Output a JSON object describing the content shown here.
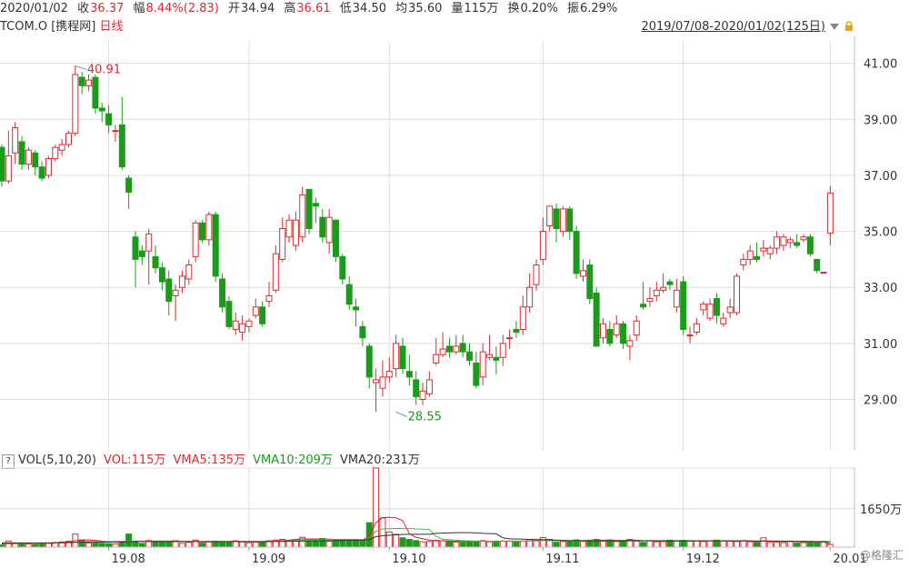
{
  "quote": {
    "date": "2020/01/02",
    "close_label": "收",
    "close": "36.37",
    "change_label": "幅",
    "change": "8.44%(2.83)",
    "open_label": "开",
    "open": "34.94",
    "high_label": "高",
    "high": "36.61",
    "low_label": "低",
    "low": "34.50",
    "avg_label": "均",
    "avg": "35.60",
    "volume_label": "量",
    "volume": "115万",
    "turnover_label": "换",
    "turnover": "0.20%",
    "amplitude_label": "振",
    "amplitude": "6.29%"
  },
  "title": {
    "ticker": "TCOM.O",
    "name": "[携程网]",
    "period": "日线",
    "range": "2019/07/08-2020/01/02(125日)"
  },
  "volume_legend": {
    "help": "?",
    "indicator": "VOL(5,10,20)",
    "vol": "VOL:115万",
    "vma5": "VMA5:135万",
    "vma10": "VMA10:209万",
    "vma20": "VMA20:231万"
  },
  "watermark": "@格隆汇",
  "colors": {
    "up": "#e0282e",
    "down": "#1a9c1a",
    "vma5": "#d0212e",
    "vma10": "#3cbf4c",
    "vma20": "#333333",
    "grid": "#dcdcdc"
  },
  "chart_data": [
    {
      "type": "candlestick",
      "title": "",
      "ylim": [
        27.2,
        41.8
      ],
      "y_ticks": [
        "41.00",
        "39.00",
        "37.00",
        "35.00",
        "33.00",
        "31.00",
        "29.00"
      ],
      "y_tick_values": [
        41,
        39,
        37,
        35,
        33,
        31,
        29
      ],
      "x_ticks": [
        "19.08",
        "19.09",
        "19.10",
        "19.11",
        "19.12",
        "20.01"
      ],
      "x_tick_index": [
        16,
        37,
        58,
        81,
        102,
        124
      ],
      "annotations": [
        {
          "label": "40.91",
          "index": 11,
          "value": 40.91,
          "kind": "high"
        },
        {
          "label": "28.55",
          "index": 59,
          "value": 28.55,
          "kind": "low"
        }
      ],
      "candles": [
        [
          38.0,
          36.8,
          38.1,
          36.6
        ],
        [
          36.8,
          37.7,
          38.6,
          36.7
        ],
        [
          37.8,
          38.7,
          38.9,
          37.4
        ],
        [
          38.2,
          37.4,
          38.4,
          37.2
        ],
        [
          37.4,
          37.9,
          38.0,
          37.2
        ],
        [
          37.8,
          37.3,
          37.9,
          37.0
        ],
        [
          37.3,
          36.9,
          37.5,
          36.8
        ],
        [
          37.0,
          37.6,
          37.7,
          36.9
        ],
        [
          37.6,
          38.0,
          38.1,
          37.5
        ],
        [
          37.9,
          38.1,
          38.3,
          37.7
        ],
        [
          38.1,
          38.5,
          38.6,
          38.0
        ],
        [
          38.5,
          40.6,
          40.91,
          38.4
        ],
        [
          40.5,
          40.2,
          40.7,
          39.9
        ],
        [
          40.2,
          40.4,
          40.6,
          40.0
        ],
        [
          40.5,
          39.4,
          40.6,
          39.2
        ],
        [
          39.4,
          39.3,
          39.6,
          38.9
        ],
        [
          39.2,
          38.8,
          39.5,
          38.5
        ],
        [
          38.6,
          38.6,
          38.8,
          38.2
        ],
        [
          38.8,
          37.3,
          39.8,
          37.2
        ],
        [
          36.9,
          36.4,
          37.0,
          35.8
        ],
        [
          34.8,
          34.0,
          35.0,
          33.0
        ],
        [
          34.3,
          34.1,
          34.5,
          33.8
        ],
        [
          34.3,
          34.9,
          35.1,
          33.1
        ],
        [
          34.1,
          33.7,
          34.5,
          33.5
        ],
        [
          33.7,
          33.2,
          33.9,
          32.9
        ],
        [
          33.3,
          32.5,
          33.6,
          32.0
        ],
        [
          32.7,
          32.9,
          33.1,
          31.8
        ],
        [
          33.0,
          33.4,
          33.6,
          32.8
        ],
        [
          33.3,
          33.8,
          34.0,
          33.1
        ],
        [
          34.1,
          35.3,
          35.4,
          33.9
        ],
        [
          35.3,
          34.7,
          35.4,
          34.6
        ],
        [
          34.7,
          35.6,
          35.7,
          34.5
        ],
        [
          35.6,
          33.4,
          35.7,
          33.2
        ],
        [
          33.3,
          32.3,
          33.5,
          32.1
        ],
        [
          32.5,
          31.6,
          32.7,
          31.5
        ],
        [
          31.5,
          31.8,
          32.1,
          31.3
        ],
        [
          31.4,
          31.7,
          32.0,
          31.1
        ],
        [
          31.6,
          31.8,
          31.9,
          31.4
        ],
        [
          32.0,
          32.3,
          32.6,
          31.9
        ],
        [
          32.3,
          31.7,
          32.5,
          31.6
        ],
        [
          32.5,
          32.7,
          33.2,
          32.3
        ],
        [
          32.9,
          34.2,
          34.5,
          32.8
        ],
        [
          34.0,
          35.1,
          35.5,
          33.9
        ],
        [
          34.8,
          35.4,
          35.6,
          34.6
        ],
        [
          34.5,
          35.4,
          35.7,
          34.3
        ],
        [
          34.8,
          36.3,
          36.6,
          34.6
        ],
        [
          36.5,
          35.1,
          36.5,
          34.9
        ],
        [
          36.0,
          35.9,
          36.2,
          35.3
        ],
        [
          35.5,
          34.8,
          35.8,
          34.6
        ],
        [
          34.6,
          35.5,
          35.8,
          34.2
        ],
        [
          35.4,
          34.1,
          35.4,
          33.9
        ],
        [
          34.1,
          33.3,
          34.2,
          33.1
        ],
        [
          33.1,
          32.4,
          33.4,
          32.2
        ],
        [
          32.3,
          32.2,
          32.6,
          31.6
        ],
        [
          31.6,
          31.2,
          31.8,
          30.9
        ],
        [
          30.9,
          29.8,
          31.0,
          29.4
        ],
        [
          29.6,
          29.7,
          30.1,
          28.55
        ],
        [
          29.4,
          29.8,
          30.4,
          29.1
        ],
        [
          29.8,
          30.0,
          30.5,
          29.6
        ],
        [
          30.1,
          31.0,
          31.3,
          29.8
        ],
        [
          30.9,
          30.1,
          31.2,
          29.9
        ],
        [
          30.0,
          29.8,
          30.6,
          29.5
        ],
        [
          29.7,
          29.1,
          30.0,
          28.8
        ],
        [
          29.0,
          29.3,
          29.6,
          28.8
        ],
        [
          29.2,
          29.7,
          30.0,
          29.1
        ],
        [
          30.3,
          30.6,
          31.2,
          30.2
        ],
        [
          30.6,
          30.8,
          31.4,
          30.5
        ],
        [
          30.9,
          30.7,
          31.2,
          30.5
        ],
        [
          30.7,
          30.9,
          31.3,
          30.6
        ],
        [
          31.0,
          30.7,
          31.3,
          30.5
        ],
        [
          30.7,
          30.4,
          31.0,
          30.2
        ],
        [
          30.3,
          29.5,
          30.7,
          29.4
        ],
        [
          29.8,
          30.7,
          31.0,
          29.5
        ],
        [
          30.5,
          30.6,
          31.3,
          30.4
        ],
        [
          30.5,
          30.4,
          30.9,
          29.9
        ],
        [
          30.5,
          31.0,
          31.3,
          30.2
        ],
        [
          31.2,
          31.2,
          31.5,
          30.8
        ],
        [
          31.5,
          31.4,
          31.8,
          31.2
        ],
        [
          31.5,
          32.3,
          32.7,
          31.3
        ],
        [
          32.3,
          33.0,
          33.5,
          32.1
        ],
        [
          33.1,
          33.8,
          34.0,
          32.9
        ],
        [
          34.0,
          35.0,
          35.5,
          33.8
        ],
        [
          35.2,
          35.9,
          35.9,
          35.0
        ],
        [
          35.8,
          35.1,
          36.0,
          34.6
        ],
        [
          35.0,
          35.8,
          35.9,
          34.8
        ],
        [
          35.8,
          35.0,
          35.9,
          34.7
        ],
        [
          35.0,
          33.5,
          35.2,
          33.3
        ],
        [
          33.4,
          33.6,
          34.0,
          33.2
        ],
        [
          33.8,
          32.6,
          34.0,
          32.4
        ],
        [
          32.8,
          30.9,
          33.0,
          30.9
        ],
        [
          31.2,
          31.7,
          31.9,
          31.0
        ],
        [
          31.5,
          31.0,
          31.8,
          30.9
        ],
        [
          31.3,
          31.7,
          32.0,
          31.2
        ],
        [
          31.7,
          31.0,
          31.8,
          30.8
        ],
        [
          30.9,
          31.1,
          31.3,
          30.4
        ],
        [
          31.3,
          31.8,
          32.0,
          31.1
        ],
        [
          32.4,
          32.3,
          33.2,
          32.2
        ],
        [
          32.5,
          32.6,
          33.0,
          32.3
        ],
        [
          32.7,
          32.9,
          33.2,
          32.5
        ],
        [
          32.9,
          33.0,
          33.5,
          32.8
        ],
        [
          33.2,
          33.1,
          33.3,
          32.9
        ],
        [
          32.3,
          32.9,
          33.3,
          32.1
        ],
        [
          33.2,
          31.5,
          33.4,
          31.3
        ],
        [
          31.3,
          31.3,
          31.6,
          31.0
        ],
        [
          31.4,
          31.7,
          31.9,
          31.3
        ],
        [
          32.2,
          32.4,
          32.5,
          32.0
        ],
        [
          31.9,
          32.4,
          32.6,
          31.8
        ],
        [
          32.6,
          32.0,
          32.8,
          31.7
        ],
        [
          31.7,
          31.9,
          32.1,
          31.6
        ],
        [
          32.1,
          32.3,
          32.6,
          31.9
        ],
        [
          32.1,
          33.4,
          33.5,
          32.0
        ],
        [
          33.8,
          34.0,
          34.2,
          33.6
        ],
        [
          34.0,
          34.3,
          34.5,
          33.8
        ],
        [
          34.1,
          34.0,
          34.6,
          33.9
        ],
        [
          34.3,
          34.4,
          34.7,
          34.1
        ],
        [
          34.2,
          34.4,
          34.5,
          34.0
        ],
        [
          34.4,
          34.8,
          35.0,
          34.2
        ],
        [
          34.5,
          34.8,
          34.9,
          34.3
        ],
        [
          34.6,
          34.7,
          34.8,
          34.4
        ],
        [
          34.6,
          34.5,
          34.9,
          34.4
        ],
        [
          34.7,
          34.8,
          34.9,
          34.6
        ],
        [
          34.8,
          34.2,
          34.9,
          34.1
        ],
        [
          34.0,
          33.6,
          34.0,
          33.5
        ],
        [
          33.54,
          33.54,
          33.54,
          33.54
        ],
        [
          34.94,
          36.37,
          36.61,
          34.5
        ]
      ]
    },
    {
      "type": "bar",
      "title": "",
      "ylabel": "",
      "y_ticks": [
        "1650万"
      ],
      "y_tick_values": [
        1650
      ],
      "ylim": [
        0,
        3400
      ],
      "values": [
        90,
        260,
        150,
        140,
        130,
        120,
        130,
        160,
        190,
        220,
        250,
        560,
        310,
        180,
        170,
        160,
        150,
        140,
        170,
        560,
        250,
        160,
        280,
        220,
        250,
        210,
        270,
        160,
        200,
        300,
        170,
        220,
        250,
        230,
        200,
        270,
        220,
        190,
        210,
        230,
        270,
        300,
        330,
        290,
        320,
        420,
        250,
        260,
        370,
        250,
        300,
        330,
        310,
        330,
        280,
        1050,
        3400,
        1250,
        650,
        550,
        400,
        330,
        280,
        230,
        240,
        290,
        270,
        260,
        220,
        210,
        230,
        250,
        280,
        230,
        260,
        260,
        250,
        230,
        250,
        330,
        280,
        410,
        330,
        210,
        240,
        260,
        310,
        250,
        300,
        330,
        260,
        310,
        240,
        270,
        330,
        260,
        200,
        280,
        230,
        240,
        300,
        270,
        290,
        250,
        260,
        240,
        270,
        300,
        260,
        250,
        240,
        280,
        230,
        210,
        400,
        200,
        210,
        190,
        260,
        170,
        190,
        210,
        200,
        240,
        115
      ],
      "vma5": [
        130,
        140,
        150,
        160,
        170,
        170,
        160,
        160,
        170,
        190,
        220,
        280,
        300,
        310,
        290,
        260,
        230,
        220,
        200,
        230,
        260,
        260,
        250,
        260,
        260,
        260,
        260,
        250,
        240,
        240,
        220,
        230,
        230,
        230,
        240,
        250,
        230,
        230,
        230,
        230,
        250,
        260,
        280,
        300,
        330,
        350,
        350,
        350,
        340,
        340,
        330,
        320,
        320,
        320,
        310,
        470,
        1050,
        1270,
        1280,
        1260,
        1140,
        570,
        420,
        360,
        300,
        270,
        270,
        260,
        250,
        250,
        250,
        250,
        250,
        250,
        250,
        260,
        260,
        260,
        260,
        270,
        280,
        300,
        310,
        290,
        280,
        280,
        270,
        280,
        290,
        300,
        300,
        300,
        290,
        290,
        300,
        300,
        280,
        270,
        260,
        250,
        250,
        260,
        270,
        270,
        270,
        270,
        270,
        270,
        270,
        270,
        270,
        270,
        260,
        250,
        270,
        260,
        250,
        240,
        240,
        230,
        220,
        210,
        210,
        210,
        135
      ],
      "vma10": [
        150,
        160,
        160,
        170,
        170,
        170,
        170,
        170,
        170,
        180,
        190,
        210,
        230,
        240,
        240,
        240,
        240,
        240,
        250,
        260,
        260,
        250,
        250,
        250,
        250,
        240,
        240,
        240,
        240,
        240,
        240,
        240,
        240,
        240,
        240,
        240,
        240,
        240,
        240,
        240,
        240,
        250,
        260,
        270,
        280,
        300,
        310,
        310,
        320,
        320,
        330,
        330,
        330,
        330,
        320,
        400,
        680,
        780,
        790,
        800,
        800,
        800,
        780,
        770,
        760,
        460,
        330,
        320,
        300,
        280,
        270,
        260,
        260,
        250,
        250,
        250,
        250,
        250,
        250,
        260,
        260,
        280,
        280,
        280,
        280,
        280,
        280,
        280,
        280,
        280,
        280,
        280,
        280,
        280,
        280,
        280,
        280,
        280,
        280,
        280,
        280,
        280,
        280,
        280,
        270,
        270,
        270,
        270,
        270,
        270,
        270,
        270,
        260,
        260,
        260,
        250,
        250,
        250,
        240,
        240,
        240,
        230,
        230,
        220,
        209
      ],
      "vma20": [
        180,
        180,
        180,
        180,
        180,
        180,
        180,
        180,
        190,
        190,
        190,
        200,
        210,
        210,
        210,
        210,
        220,
        220,
        220,
        230,
        240,
        240,
        240,
        240,
        240,
        240,
        240,
        240,
        240,
        240,
        240,
        240,
        240,
        240,
        240,
        240,
        240,
        240,
        240,
        240,
        240,
        240,
        240,
        250,
        250,
        260,
        270,
        270,
        270,
        280,
        280,
        290,
        290,
        290,
        300,
        330,
        450,
        490,
        510,
        530,
        540,
        550,
        550,
        550,
        550,
        590,
        600,
        610,
        620,
        620,
        620,
        610,
        590,
        580,
        570,
        400,
        350,
        350,
        340,
        330,
        320,
        320,
        310,
        300,
        290,
        280,
        280,
        270,
        270,
        270,
        270,
        270,
        270,
        270,
        270,
        270,
        270,
        270,
        270,
        270,
        270,
        270,
        270,
        270,
        270,
        270,
        270,
        270,
        270,
        270,
        270,
        270,
        270,
        260,
        260,
        260,
        260,
        260,
        250,
        250,
        250,
        250,
        240,
        240,
        231
      ]
    }
  ]
}
